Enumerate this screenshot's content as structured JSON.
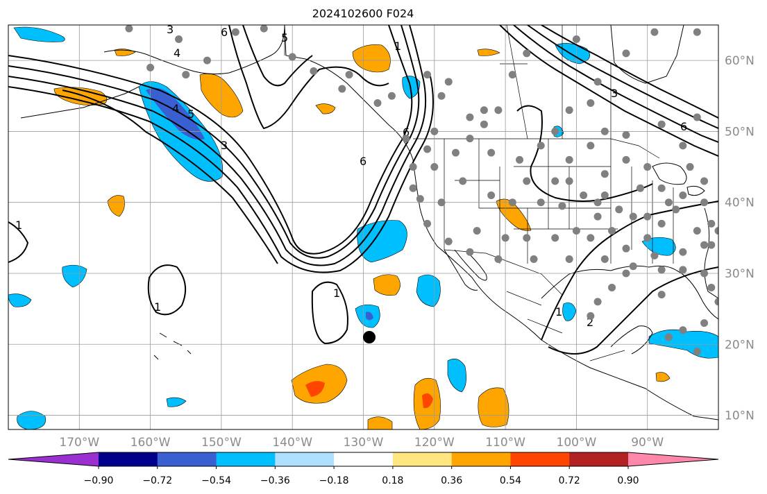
{
  "title": "2024102600 F024",
  "map": {
    "lon_range": [
      -180,
      -80
    ],
    "lat_range": [
      8,
      65
    ],
    "lon_ticks": [
      "170°W",
      "160°W",
      "150°W",
      "140°W",
      "130°W",
      "120°W",
      "110°W",
      "100°W",
      "90°W"
    ],
    "lat_ticks": [
      "10°N",
      "20°N",
      "30°N",
      "40°N",
      "50°N",
      "60°N"
    ],
    "tick_color": "#8a8a8a",
    "grid": true
  },
  "colorbar": {
    "labels": [
      "−0.90",
      "−0.72",
      "−0.54",
      "−0.36",
      "−0.18",
      "0.18",
      "0.36",
      "0.54",
      "0.72",
      "0.90"
    ],
    "colors": [
      "#9b30d0",
      "#00008b",
      "#3a5fd0",
      "#00bfff",
      "#b0e0ff",
      "#ffffff",
      "#ffe680",
      "#ffa500",
      "#ff4500",
      "#b22222",
      "#ff88aa"
    ]
  },
  "contour_labels": [
    "1",
    "1",
    "1",
    "1",
    "1",
    "2",
    "3",
    "3",
    "3",
    "4",
    "4",
    "5",
    "5",
    "6",
    "6",
    "6",
    "6"
  ],
  "stations": {
    "color": "#808080",
    "marker": "black-dot"
  }
}
